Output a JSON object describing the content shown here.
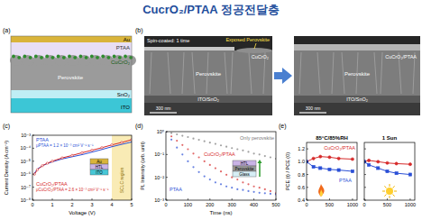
{
  "title": "CucrO₂/PTAA 정공전달층",
  "panel_labels": [
    "(a)",
    "(b)",
    "(c)",
    "(d)",
    "(e)"
  ],
  "panels": {
    "a": {
      "layers": [
        "Au",
        "PTAA",
        "CuCrO₂",
        "Perovskite",
        "SnO₂",
        "ITO"
      ]
    },
    "b": {
      "left": {
        "note": "Spin-coated: 1 time",
        "callout": "Exposed Perovskite",
        "layers": [
          "CuCrO₂",
          "Perovskite",
          "ITO/SnO₂"
        ],
        "scale_bar": "300 nm"
      },
      "right": {
        "layers": [
          "CuCrO₂/PTAA",
          "Perovskite",
          "ITO/SnO₂"
        ],
        "scale_bar": "300 nm"
      }
    }
  },
  "chart_data": [
    {
      "type": "line",
      "x_label": "Voltage (V)",
      "y_label": "Current Density (A cm⁻²)",
      "log": "y",
      "x": [
        0.1,
        0.25,
        0.5,
        0.75,
        1,
        1.5,
        2,
        2.5,
        3,
        3.5,
        4,
        4.5,
        5
      ],
      "xlim": [
        0,
        5
      ],
      "xticks": [
        0,
        1,
        2,
        3,
        4,
        5
      ],
      "ylim": [
        1e-08,
        0.001
      ],
      "yticks": [
        {
          "value": 1e-08,
          "label": "10⁻⁸"
        },
        {
          "value": 1e-07,
          "label": "10⁻⁷"
        },
        {
          "value": 1e-06,
          "label": "10⁻⁶"
        },
        {
          "value": 1e-05,
          "label": "10⁻⁵"
        },
        {
          "value": 0.0001,
          "label": "10⁻⁴"
        },
        {
          "value": 0.001,
          "label": "10⁻³"
        }
      ],
      "series": [
        {
          "name": "PTAA",
          "color": "#2a4fd6",
          "line_style": "solid",
          "values": [
            1.2e-06,
            2.5e-06,
            4.5e-06,
            6.5e-06,
            9e-06,
            1.5e-05,
            2.2e-05,
            3.2e-05,
            5e-05,
            8e-05,
            0.00013,
            0.0002,
            0.0003
          ]
        },
        {
          "name": "CuCrO₂/PTAA",
          "color": "#d62a2a",
          "line_style": "solid",
          "marker": "circle",
          "values": [
            1e-06,
            2.2e-06,
            4.5e-06,
            7e-06,
            1e-05,
            1.8e-05,
            2.8e-05,
            4.5e-05,
            7e-05,
            0.00011,
            0.00018,
            0.00028,
            0.00045
          ]
        }
      ],
      "annotations": [
        {
          "text": "μPTAA = 1.2 × 10⁻³ cm² V⁻¹ s⁻¹",
          "color": "#2a4fd6"
        },
        {
          "text": "μCuCrO₂/PTAA = 2.6 × 10⁻³ cm² V⁻¹ s⁻¹",
          "color": "#d62a2a"
        }
      ],
      "region": {
        "label": "SCLC region",
        "x": [
          4,
          5
        ]
      },
      "inset": [
        "Au",
        "HTL",
        "ITO"
      ]
    },
    {
      "type": "scatter",
      "x_label": "Time (ns)",
      "y_label": "PL Intensity (arb. unit)",
      "log": "y",
      "x": [
        0,
        25,
        50,
        75,
        100,
        125,
        150,
        175,
        200,
        225,
        250,
        275,
        300,
        325,
        350,
        375,
        400,
        425,
        450,
        475,
        500
      ],
      "xlim": [
        0,
        500
      ],
      "xticks": [
        0,
        100,
        200,
        300,
        400,
        500
      ],
      "ylim": [
        0.001,
        1
      ],
      "yticks": [
        {
          "value": 0.001,
          "label": "10⁻³"
        },
        {
          "value": 0.01,
          "label": "10⁻²"
        },
        {
          "value": 0.1,
          "label": "10⁻¹"
        },
        {
          "value": 1,
          "label": "10⁰"
        }
      ],
      "series": [
        {
          "name": "Only perovskite",
          "color": "#7a7a7a",
          "marker": "circle",
          "values": [
            1,
            0.87,
            0.76,
            0.66,
            0.58,
            0.5,
            0.44,
            0.38,
            0.33,
            0.29,
            0.25,
            0.22,
            0.19,
            0.17,
            0.15,
            0.13,
            0.11,
            0.1,
            0.085,
            0.075,
            0.065
          ]
        },
        {
          "name": "CuCrO₂/PTAA",
          "color": "#d62a2a",
          "marker": "circle",
          "values": [
            1,
            0.62,
            0.4,
            0.26,
            0.17,
            0.11,
            0.075,
            0.05,
            0.035,
            0.025,
            0.018,
            0.013,
            0.01,
            0.008,
            0.006,
            0.005,
            0.004,
            0.0035,
            0.003,
            0.0025,
            0.002
          ]
        },
        {
          "name": "PTAA",
          "color": "#2a4fd6",
          "marker": "circle",
          "values": [
            1,
            0.45,
            0.2,
            0.1,
            0.05,
            0.028,
            0.017,
            0.011,
            0.008,
            0.006,
            0.005,
            0.004,
            0.0035,
            0.003,
            0.0028,
            0.0025,
            0.0023,
            0.0021,
            0.002,
            0.0019,
            0.0018
          ]
        }
      ],
      "inset": [
        "HTL",
        "Perovskite",
        "Glass"
      ]
    },
    {
      "type": "line",
      "title": "85°C/85%RH",
      "y_label": "PCE (t) / PCE (0)",
      "x": [
        0,
        150,
        300,
        500,
        700,
        1000
      ],
      "xlim": [
        0,
        1100
      ],
      "xticks": [
        0,
        500,
        1000
      ],
      "ylim": [
        0.4,
        1.3
      ],
      "yticks": [
        0.4,
        0.6,
        0.8,
        {
          "value": 1,
          "label": "1.0"
        },
        1.2
      ],
      "series": [
        {
          "name": "CuCrO₂/PTAA",
          "color": "#d62a2a",
          "marker": "circle",
          "line_style": "solid",
          "values": [
            1.0,
            1.05,
            1.08,
            1.07,
            1.05,
            1.04
          ]
        },
        {
          "name": "PTAA",
          "color": "#2a4fd6",
          "marker": "square",
          "line_style": "solid",
          "values": [
            1.0,
            0.92,
            0.9,
            0.88,
            0.87,
            0.85
          ]
        }
      ]
    },
    {
      "type": "line",
      "title": "1 Sun",
      "tick_labels": "x",
      "x": [
        0,
        100,
        300,
        500,
        700,
        1000
      ],
      "xlim": [
        0,
        1100
      ],
      "xticks": [
        0,
        500,
        1000
      ],
      "ylim": [
        0.4,
        1.3
      ],
      "yticks": [
        0.4,
        0.6,
        0.8,
        {
          "value": 1,
          "label": "1.0"
        },
        1.2
      ],
      "series": [
        {
          "color": "#d62a2a",
          "marker": "circle",
          "line_style": "solid",
          "values": [
            1.0,
            1.02,
            1.0,
            0.98,
            0.97,
            0.96
          ]
        },
        {
          "color": "#2a4fd6",
          "marker": "square",
          "line_style": "solid",
          "values": [
            1.0,
            0.95,
            0.9,
            0.85,
            0.82,
            0.8
          ]
        }
      ]
    }
  ]
}
